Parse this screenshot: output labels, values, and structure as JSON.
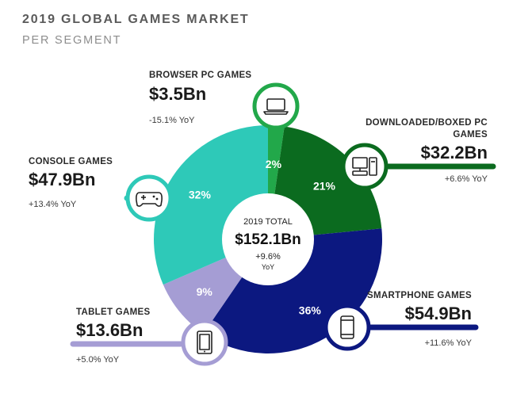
{
  "header": {
    "title": "2019 GLOBAL GAMES MARKET",
    "subtitle": "PER SEGMENT"
  },
  "center": {
    "label": "2019 TOTAL",
    "value": "$152.1Bn",
    "growth": "+9.6%",
    "growth_unit": "YoY"
  },
  "chart_data": {
    "type": "pie",
    "title": "2019 GLOBAL GAMES MARKET",
    "subtitle": "PER SEGMENT",
    "start_angle_deg": 0,
    "slices": [
      {
        "name": "BROWSER PC GAMES",
        "value": 3.5,
        "value_label": "$3.5Bn",
        "percent": 2,
        "percent_label": "2%",
        "yoy": "-15.1% YoY",
        "color": "#22a84a",
        "icon": "laptop-icon"
      },
      {
        "name": "DOWNLOADED/BOXED PC GAMES",
        "value": 32.2,
        "value_label": "$32.2Bn",
        "percent": 21,
        "percent_label": "21%",
        "yoy": "+6.6% YoY",
        "color": "#0b6b1f",
        "icon": "desktop-pc-icon"
      },
      {
        "name": "SMARTPHONE GAMES",
        "value": 54.9,
        "value_label": "$54.9Bn",
        "percent": 36,
        "percent_label": "36%",
        "yoy": "+11.6% YoY",
        "color": "#0c1880",
        "icon": "smartphone-icon"
      },
      {
        "name": "TABLET GAMES",
        "value": 13.6,
        "value_label": "$13.6Bn",
        "percent": 9,
        "percent_label": "9%",
        "yoy": "+5.0% YoY",
        "color": "#a59dd4",
        "icon": "tablet-icon"
      },
      {
        "name": "CONSOLE GAMES",
        "value": 47.9,
        "value_label": "$47.9Bn",
        "percent": 32,
        "percent_label": "32%",
        "yoy": "+13.4% YoY",
        "color": "#2ec9b8",
        "icon": "gamepad-icon"
      }
    ]
  }
}
